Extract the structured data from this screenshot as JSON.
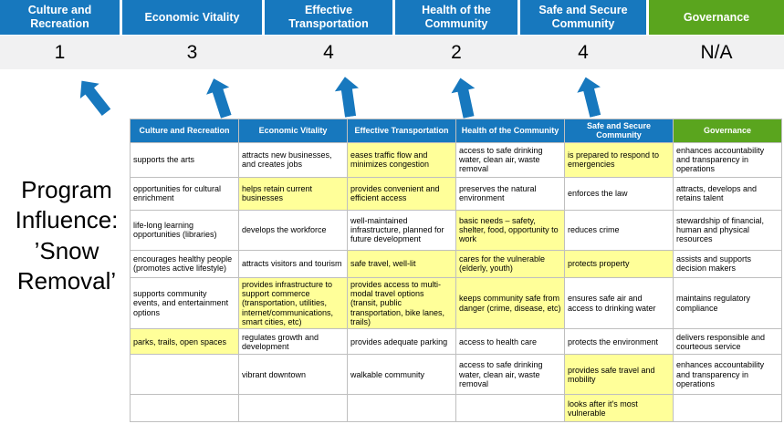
{
  "slide_title": "Program Influence: ’Snow Removal’",
  "colors": {
    "category_blue": "#1778BE",
    "governance_green": "#5AA51E",
    "highlight_yellow": "#FFFF99",
    "score_band_gray": "#F1F1F2",
    "grid_border": "#BFBFBF",
    "arrow_blue": "#1778BE"
  },
  "scoreboard": {
    "columns": [
      {
        "label": "Culture and Recreation",
        "score": "1"
      },
      {
        "label": "Economic Vitality",
        "score": "3"
      },
      {
        "label": "Effective Transportation",
        "score": "4"
      },
      {
        "label": "Health of the Community",
        "score": "2"
      },
      {
        "label": "Safe and Secure Community",
        "score": "4"
      },
      {
        "label": "Governance",
        "score": "N/A"
      }
    ]
  },
  "table": {
    "headers": [
      "Culture and Recreation",
      "Economic Vitality",
      "Effective Transportation",
      "Health of the Community",
      "Safe and Secure Community",
      "Governance"
    ],
    "rows": [
      [
        {
          "t": "supports the arts",
          "h": false
        },
        {
          "t": "attracts new businesses, and creates jobs",
          "h": false
        },
        {
          "t": "eases traffic flow and minimizes congestion",
          "h": true
        },
        {
          "t": "access to safe drinking water, clean air, waste removal",
          "h": false
        },
        {
          "t": "is prepared to respond to emergencies",
          "h": true
        },
        {
          "t": "enhances accountability and transparency in operations",
          "h": false
        }
      ],
      [
        {
          "t": "opportunities for cultural enrichment",
          "h": false
        },
        {
          "t": "helps retain current businesses",
          "h": true
        },
        {
          "t": "provides convenient and efficient access",
          "h": true
        },
        {
          "t": "preserves the natural environment",
          "h": false
        },
        {
          "t": "enforces the law",
          "h": false
        },
        {
          "t": "attracts, develops and retains talent",
          "h": false
        }
      ],
      [
        {
          "t": "life-long learning opportunities (libraries)",
          "h": false
        },
        {
          "t": "develops the workforce",
          "h": false
        },
        {
          "t": "well-maintained infrastructure, planned for future development",
          "h": false
        },
        {
          "t": "basic needs – safety, shelter, food, opportunity to work",
          "h": true
        },
        {
          "t": "reduces crime",
          "h": false
        },
        {
          "t": "stewardship of financial, human and physical resources",
          "h": false
        }
      ],
      [
        {
          "t": "encourages healthy people (promotes active lifestyle)",
          "h": false
        },
        {
          "t": "attracts visitors and tourism",
          "h": false
        },
        {
          "t": "safe travel, well-lit",
          "h": true
        },
        {
          "t": "cares for the vulnerable (elderly, youth)",
          "h": true
        },
        {
          "t": "protects property",
          "h": true
        },
        {
          "t": "assists and supports decision makers",
          "h": false
        }
      ],
      [
        {
          "t": "supports community events, and entertainment options",
          "h": false
        },
        {
          "t": "provides infrastructure to support commerce (transportation, utilities, internet/communications, smart cities, etc)",
          "h": true
        },
        {
          "t": "provides access to multi-modal travel options (transit, public transportation, bike lanes, trails)",
          "h": true
        },
        {
          "t": "keeps community safe from danger (crime, disease, etc)",
          "h": true
        },
        {
          "t": "ensures safe air and access to drinking water",
          "h": false
        },
        {
          "t": "maintains regulatory compliance",
          "h": false
        }
      ],
      [
        {
          "t": "parks, trails, open spaces",
          "h": true
        },
        {
          "t": "regulates growth and development",
          "h": false
        },
        {
          "t": "provides adequate parking",
          "h": false
        },
        {
          "t": "access to health care",
          "h": false
        },
        {
          "t": "protects the environment",
          "h": false
        },
        {
          "t": "delivers responsible and courteous service",
          "h": false
        }
      ],
      [
        {
          "t": "",
          "h": false
        },
        {
          "t": "vibrant downtown",
          "h": false
        },
        {
          "t": "walkable community",
          "h": false
        },
        {
          "t": "access to safe drinking water, clean air, waste removal",
          "h": false
        },
        {
          "t": "provides safe travel and mobility",
          "h": true
        },
        {
          "t": "enhances accountability and transparency in operations",
          "h": false
        }
      ],
      [
        {
          "t": "",
          "h": false
        },
        {
          "t": "",
          "h": false
        },
        {
          "t": "",
          "h": false
        },
        {
          "t": "",
          "h": false
        },
        {
          "t": "looks after it's most vulnerable",
          "h": true
        },
        {
          "t": "",
          "h": false
        }
      ]
    ]
  }
}
